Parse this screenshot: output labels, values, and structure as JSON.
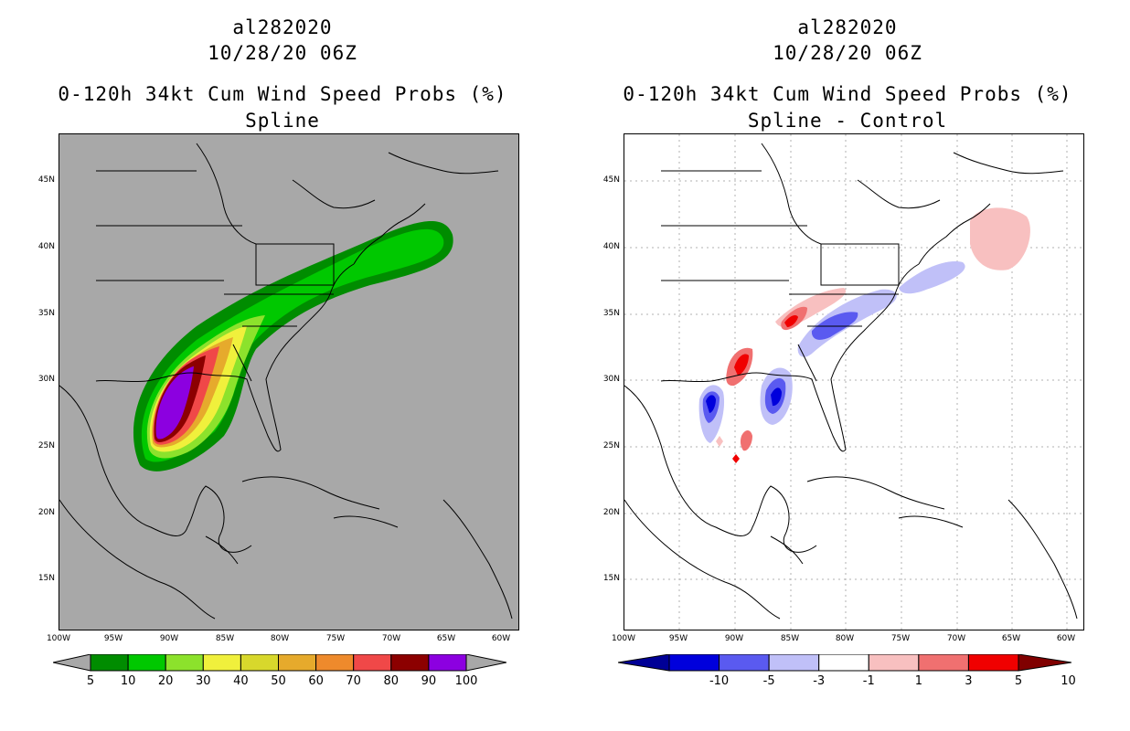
{
  "left_panel": {
    "storm_id": "al282020",
    "datetime": "10/28/20 06Z",
    "title": "0-120h 34kt Cum Wind Speed Probs (%)",
    "subtitle": "Spline",
    "colorbar": {
      "labels": [
        "5",
        "10",
        "20",
        "30",
        "40",
        "50",
        "60",
        "70",
        "80",
        "90",
        "100"
      ],
      "colors": [
        "#008c00",
        "#00c800",
        "#8ce22c",
        "#f0f03c",
        "#d8d82c",
        "#e6aa2c",
        "#ee8a2c",
        "#f04848",
        "#8c0000",
        "#8c00e0"
      ],
      "under_color": "#a8a8a8",
      "over_color": "#a8a8a8"
    }
  },
  "right_panel": {
    "storm_id": "al282020",
    "datetime": "10/28/20 06Z",
    "title": "0-120h 34kt Cum Wind Speed Probs (%)",
    "subtitle": "Spline - Control",
    "colorbar": {
      "labels": [
        "-10",
        "-5",
        "-3",
        "-1",
        "1",
        "3",
        "5",
        "10"
      ],
      "colors": [
        "#0000dc",
        "#5a5af0",
        "#c0c0f8",
        "#ffffff",
        "#f8c0c0",
        "#f07070",
        "#f00000"
      ],
      "under_color": "#000096",
      "over_color": "#800000"
    }
  },
  "axes": {
    "lat_labels": [
      "45N",
      "40N",
      "35N",
      "30N",
      "25N",
      "20N",
      "15N"
    ],
    "lon_labels": [
      "100W",
      "95W",
      "90W",
      "85W",
      "80W",
      "75W",
      "70W",
      "65W",
      "60W"
    ]
  }
}
